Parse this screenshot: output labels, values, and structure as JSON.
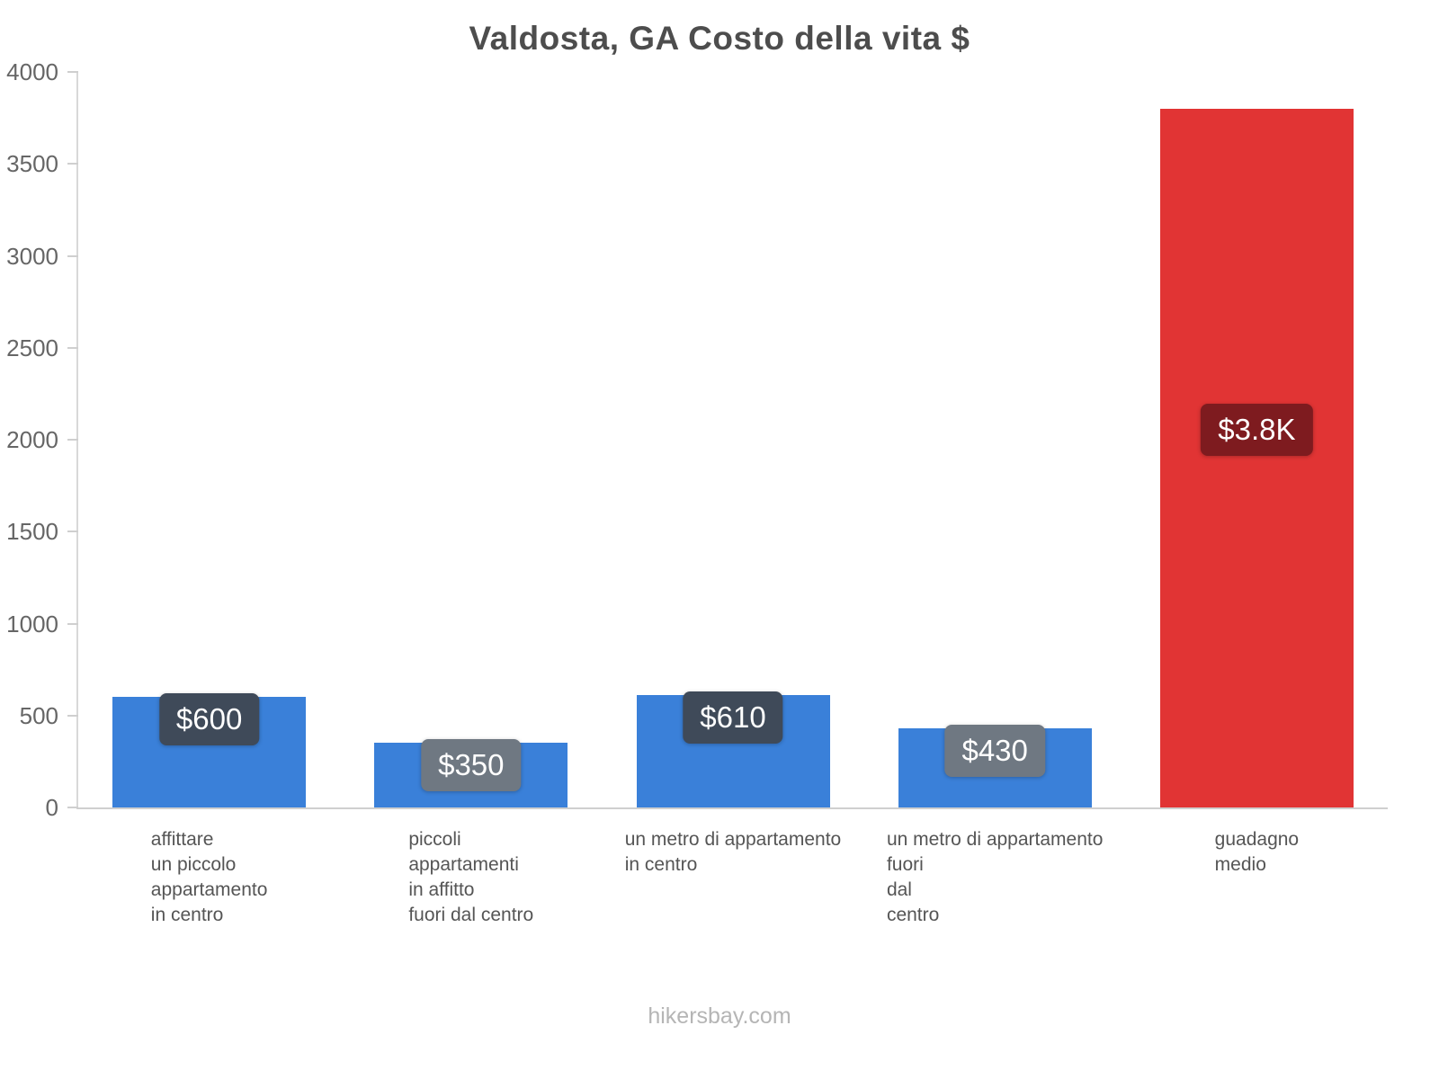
{
  "title": "Valdosta, GA Costo della vita $",
  "footer": "hikersbay.com",
  "chart_data": {
    "type": "bar",
    "title": "Valdosta, GA Costo della vita $",
    "xlabel": "",
    "ylabel": "",
    "ylim": [
      0,
      4000
    ],
    "yticks": [
      0,
      500,
      1000,
      1500,
      2000,
      2500,
      3000,
      3500,
      4000
    ],
    "grid": false,
    "legend": false,
    "categories": [
      [
        "affittare",
        "un piccolo",
        "appartamento",
        "in centro"
      ],
      [
        "piccoli",
        "appartamenti",
        "in affitto",
        "fuori dal centro"
      ],
      [
        "un metro di appartamento",
        "in centro"
      ],
      [
        "un metro di appartamento",
        "fuori",
        "dal",
        "centro"
      ],
      [
        "guadagno",
        "medio"
      ]
    ],
    "values": [
      600,
      350,
      610,
      430,
      3800
    ],
    "value_labels": [
      "$600",
      "$350",
      "$610",
      "$430",
      "$3.8K"
    ],
    "bar_colors": [
      "#3a80d9",
      "#3a80d9",
      "#3a80d9",
      "#3a80d9",
      "#e13434"
    ],
    "label_box_colors": [
      "#3f4a59",
      "#6f7882",
      "#3f4a59",
      "#6f7882",
      "#7e1b1f"
    ],
    "axis_color": "#cfcfcf",
    "tick_label_color": "#666666",
    "category_label_color": "#555555",
    "title_color": "#4d4d4d",
    "watermark_color": "#b5b5b5"
  }
}
